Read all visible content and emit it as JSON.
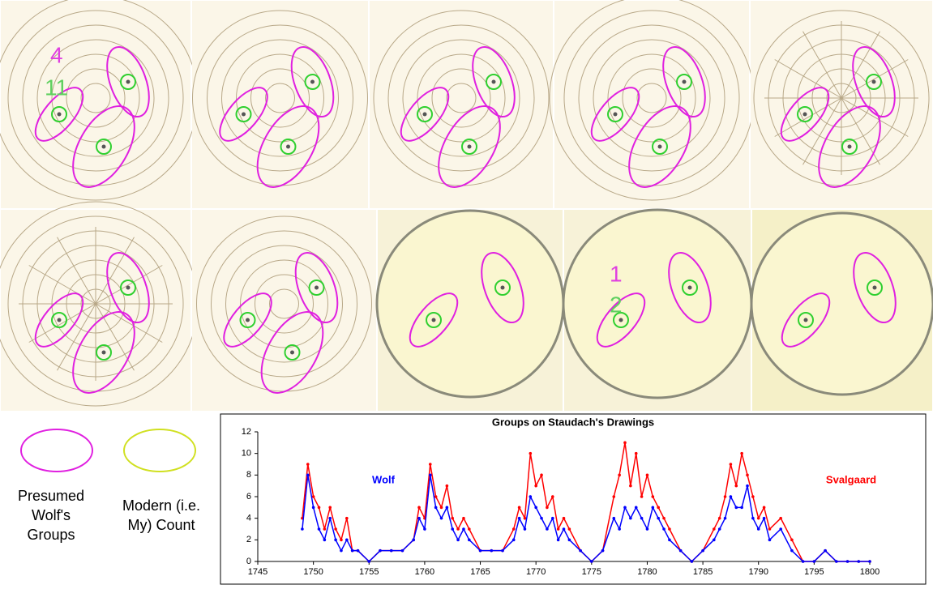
{
  "annotations": [
    {
      "wolf": "4",
      "modern": "11"
    },
    {
      "wolf": "1",
      "modern": "2"
    }
  ],
  "legend": {
    "wolf": "Presumed Wolf's Groups",
    "modern": "Modern (i.e. My) Count"
  },
  "chart_data": {
    "type": "line",
    "title": "Groups on Staudach's Drawings",
    "x": [
      1749,
      1749.5,
      1750,
      1750.5,
      1751,
      1751.5,
      1752,
      1752.5,
      1753,
      1753.5,
      1754,
      1755,
      1756,
      1757,
      1758,
      1759,
      1759.5,
      1760,
      1760.5,
      1761,
      1761.5,
      1762,
      1762.5,
      1763,
      1763.5,
      1764,
      1765,
      1766,
      1767,
      1768,
      1768.5,
      1769,
      1769.5,
      1770,
      1770.5,
      1771,
      1771.5,
      1772,
      1772.5,
      1773,
      1774,
      1775,
      1776,
      1777,
      1777.5,
      1778,
      1778.5,
      1779,
      1779.5,
      1780,
      1780.5,
      1781,
      1781.5,
      1782,
      1783,
      1784,
      1785,
      1786,
      1786.5,
      1787,
      1787.5,
      1788,
      1788.5,
      1789,
      1789.5,
      1790,
      1790.5,
      1791,
      1792,
      1793,
      1794,
      1795,
      1796,
      1797,
      1798,
      1799,
      1800
    ],
    "series": [
      {
        "name": "Svalgaard",
        "color": "#ff0000",
        "values": [
          4,
          9,
          6,
          5,
          3,
          5,
          3,
          2,
          4,
          1,
          1,
          0,
          1,
          1,
          1,
          2,
          5,
          4,
          9,
          6,
          5,
          7,
          4,
          3,
          4,
          3,
          1,
          1,
          1,
          3,
          5,
          4,
          10,
          7,
          8,
          5,
          6,
          3,
          4,
          3,
          1,
          0,
          1,
          6,
          8,
          11,
          7,
          10,
          6,
          8,
          6,
          5,
          4,
          3,
          1,
          0,
          1,
          3,
          4,
          6,
          9,
          7,
          10,
          8,
          6,
          4,
          5,
          3,
          4,
          2,
          0,
          0,
          1,
          0,
          0,
          0,
          0
        ]
      },
      {
        "name": "Wolf",
        "color": "#0000ff",
        "values": [
          3,
          8,
          5,
          3,
          2,
          4,
          2,
          1,
          2,
          1,
          1,
          0,
          1,
          1,
          1,
          2,
          4,
          3,
          8,
          5,
          4,
          5,
          3,
          2,
          3,
          2,
          1,
          1,
          1,
          2,
          4,
          3,
          6,
          5,
          4,
          3,
          4,
          2,
          3,
          2,
          1,
          0,
          1,
          4,
          3,
          5,
          4,
          5,
          4,
          3,
          5,
          4,
          3,
          2,
          1,
          0,
          1,
          2,
          3,
          4,
          6,
          5,
          5,
          7,
          4,
          3,
          4,
          2,
          3,
          1,
          0,
          0,
          1,
          0,
          0,
          0,
          0
        ]
      }
    ],
    "xlim": [
      1745,
      1800
    ],
    "xticks": [
      1745,
      1750,
      1755,
      1760,
      1765,
      1770,
      1775,
      1780,
      1785,
      1790,
      1795,
      1800
    ],
    "ylim": [
      0,
      12
    ],
    "yticks": [
      0,
      2,
      4,
      6,
      8,
      10,
      12
    ]
  }
}
